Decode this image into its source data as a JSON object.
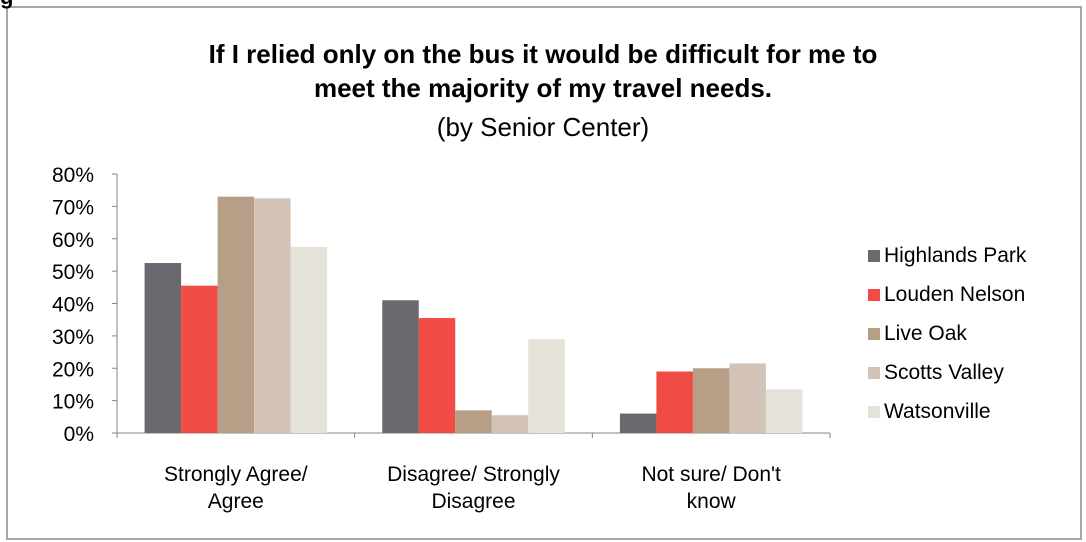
{
  "chart_data": {
    "type": "bar",
    "title_line1": "If I relied only on the bus it would be difficult for me to",
    "title_line2": "meet the majority of my travel needs.",
    "subtitle": "(by Senior Center)",
    "categories": [
      [
        "Strongly Agree/",
        "Agree"
      ],
      [
        "Disagree/ Strongly",
        "Disagree"
      ],
      [
        "Not sure/ Don't",
        "know"
      ]
    ],
    "y_ticks": [
      "0%",
      "10%",
      "20%",
      "30%",
      "40%",
      "50%",
      "60%",
      "70%",
      "80%"
    ],
    "ylim": [
      0,
      80
    ],
    "grid": false,
    "legend_position": "right",
    "series": [
      {
        "name": "Highlands Park",
        "color": "#6b6870",
        "values": [
          52.5,
          41,
          6
        ]
      },
      {
        "name": "Louden Nelson",
        "color": "#f04b45",
        "values": [
          45.5,
          35.5,
          19
        ]
      },
      {
        "name": "Live Oak",
        "color": "#b79e86",
        "values": [
          73,
          7,
          20
        ]
      },
      {
        "name": "Scotts Valley",
        "color": "#d2c3b6",
        "values": [
          72.5,
          5.5,
          21.5
        ]
      },
      {
        "name": "Watsonville",
        "color": "#e4e2d9",
        "values": [
          57.5,
          29,
          13.5
        ]
      }
    ]
  }
}
